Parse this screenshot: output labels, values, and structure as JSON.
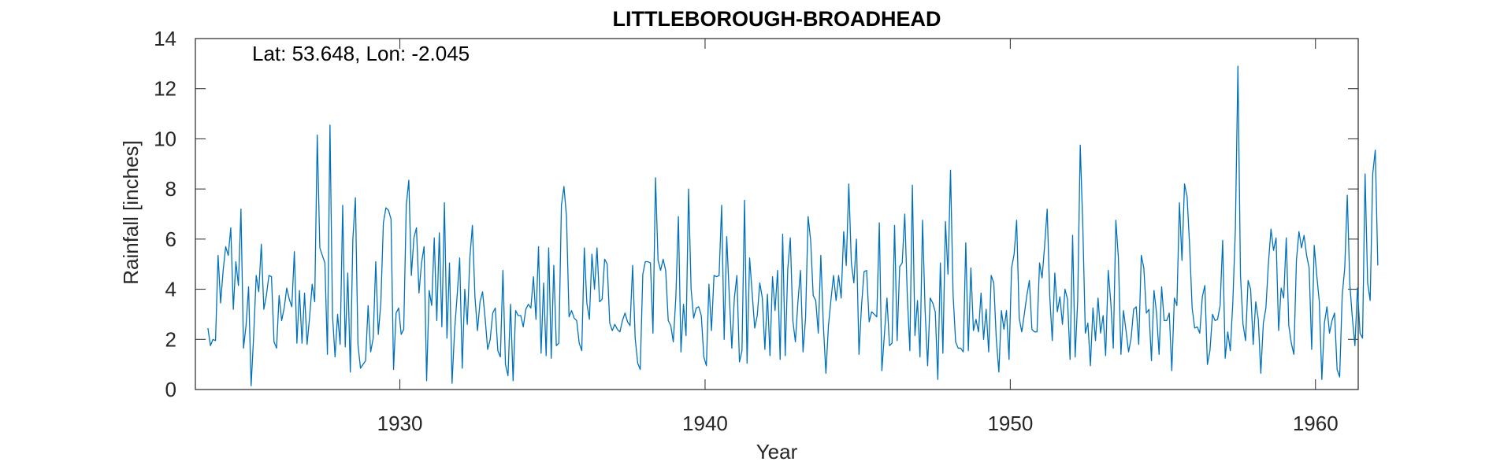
{
  "chart_data": {
    "type": "line",
    "title": "LITTLEBOROUGH-BROADHEAD",
    "annotation": "Lat: 53.648, Lon: -2.045",
    "xlabel": "Year",
    "ylabel": "Rainfall [inches]",
    "xlim": [
      1923.3,
      1961.4
    ],
    "ylim": [
      0,
      14
    ],
    "xticks": [
      1930,
      1940,
      1950,
      1960
    ],
    "yticks": [
      0,
      2,
      4,
      6,
      8,
      10,
      12,
      14
    ],
    "grid": false,
    "legend": "none",
    "line_color": "#0072BD",
    "series": [
      {
        "x_start": 1923.71,
        "x_step": 0.08333,
        "values": [
          2.45,
          1.75,
          2.0,
          1.95,
          5.35,
          3.45,
          4.75,
          5.7,
          5.35,
          6.45,
          3.2,
          5.1,
          4.15,
          7.2,
          1.65,
          2.55,
          4.1,
          0.15,
          2.15,
          4.55,
          3.9,
          5.8,
          3.2,
          3.75,
          4.55,
          4.5,
          1.9,
          1.65,
          3.75,
          2.75,
          3.25,
          4.05,
          3.6,
          3.3,
          5.5,
          1.85,
          3.95,
          1.85,
          3.85,
          1.8,
          2.9,
          4.2,
          3.5,
          10.15,
          5.65,
          5.35,
          5.05,
          1.4,
          10.55,
          2.95,
          1.3,
          3.0,
          1.8,
          7.35,
          1.7,
          4.65,
          0.7,
          6.0,
          7.65,
          1.8,
          0.85,
          1.0,
          1.15,
          3.35,
          1.5,
          2.05,
          5.1,
          2.2,
          3.45,
          6.65,
          7.25,
          7.15,
          6.8,
          0.8,
          3.05,
          3.25,
          2.2,
          2.4,
          7.35,
          8.35,
          4.55,
          6.05,
          6.45,
          3.85,
          5.05,
          5.7,
          0.35,
          3.95,
          3.35,
          6.05,
          2.75,
          6.25,
          2.5,
          7.45,
          2.05,
          5.05,
          0.25,
          2.35,
          3.75,
          5.25,
          0.85,
          4.0,
          2.6,
          5.25,
          6.55,
          3.7,
          2.35,
          3.5,
          3.9,
          2.85,
          1.6,
          2.0,
          3.05,
          3.25,
          1.55,
          1.3,
          4.75,
          1.0,
          0.55,
          3.4,
          0.35,
          3.15,
          2.95,
          2.95,
          2.5,
          3.2,
          3.4,
          3.25,
          4.5,
          2.8,
          5.7,
          1.45,
          4.25,
          1.35,
          5.65,
          1.25,
          4.95,
          1.75,
          1.85,
          7.35,
          8.1,
          6.9,
          2.9,
          3.15,
          2.85,
          2.75,
          1.85,
          1.55,
          5.65,
          3.45,
          2.8,
          5.4,
          4.0,
          5.65,
          3.5,
          3.6,
          5.2,
          5.0,
          2.65,
          2.35,
          2.6,
          2.4,
          2.3,
          2.75,
          3.05,
          2.7,
          2.55,
          4.95,
          2.05,
          1.05,
          0.8,
          4.6,
          5.1,
          5.1,
          5.05,
          2.25,
          8.45,
          5.15,
          4.75,
          5.2,
          4.75,
          2.75,
          2.55,
          1.9,
          3.7,
          6.9,
          1.5,
          3.4,
          2.15,
          8.0,
          4.0,
          2.85,
          3.25,
          3.3,
          2.95,
          1.3,
          0.95,
          4.2,
          2.35,
          4.55,
          4.5,
          4.55,
          7.35,
          2.0,
          6.1,
          3.75,
          1.65,
          3.65,
          4.55,
          1.1,
          1.55,
          7.55,
          1.05,
          5.25,
          3.85,
          2.45,
          2.95,
          4.25,
          3.65,
          1.6,
          3.8,
          1.35,
          4.5,
          3.15,
          4.75,
          1.2,
          6.2,
          1.35,
          4.8,
          6.05,
          2.75,
          1.9,
          3.5,
          4.75,
          1.5,
          2.85,
          6.9,
          5.95,
          3.75,
          3.55,
          2.25,
          5.35,
          2.55,
          0.65,
          2.55,
          3.6,
          4.55,
          3.55,
          4.55,
          3.65,
          6.3,
          4.95,
          8.2,
          5.05,
          4.25,
          6.0,
          1.4,
          3.35,
          4.7,
          4.75,
          2.7,
          3.1,
          3.0,
          2.9,
          6.65,
          0.75,
          2.2,
          3.65,
          1.75,
          1.85,
          6.55,
          1.95,
          4.9,
          5.05,
          7.0,
          3.75,
          1.55,
          8.15,
          2.15,
          3.55,
          1.3,
          6.75,
          3.15,
          0.95,
          3.65,
          3.45,
          3.1,
          0.4,
          5.05,
          1.45,
          6.7,
          4.6,
          8.75,
          3.8,
          1.9,
          1.65,
          1.65,
          1.5,
          5.85,
          1.55,
          4.85,
          2.35,
          2.8,
          2.3,
          3.85,
          2.0,
          3.2,
          1.5,
          4.55,
          4.25,
          2.0,
          0.7,
          3.15,
          2.4,
          3.15,
          1.2,
          4.85,
          5.4,
          6.75,
          2.85,
          2.3,
          3.0,
          3.75,
          4.35,
          2.4,
          2.3,
          2.3,
          5.05,
          4.45,
          5.75,
          7.2,
          3.75,
          1.95,
          4.65,
          3.1,
          3.7,
          2.6,
          4.0,
          3.6,
          1.2,
          6.15,
          1.3,
          3.55,
          9.75,
          6.55,
          2.25,
          2.65,
          0.95,
          3.25,
          1.95,
          3.65,
          2.25,
          2.95,
          1.35,
          4.75,
          3.5,
          1.65,
          6.75,
          5.25,
          1.4,
          3.15,
          2.35,
          1.5,
          2.05,
          3.2,
          3.3,
          1.8,
          5.35,
          4.85,
          3.05,
          3.2,
          1.15,
          3.95,
          3.05,
          1.4,
          4.1,
          2.75,
          2.75,
          3.05,
          0.75,
          3.65,
          3.35,
          7.45,
          5.15,
          8.2,
          7.7,
          5.75,
          3.25,
          2.45,
          2.5,
          2.25,
          3.7,
          4.15,
          1.0,
          1.55,
          3.0,
          2.75,
          2.8,
          3.35,
          5.95,
          1.25,
          2.3,
          1.55,
          3.5,
          6.4,
          12.9,
          4.55,
          2.6,
          1.95,
          4.35,
          4.0,
          1.8,
          3.5,
          2.8,
          0.65,
          2.65,
          3.25,
          5.05,
          6.4,
          5.55,
          6.05,
          2.35,
          4.05,
          3.65,
          6.05,
          2.55,
          1.85,
          1.4,
          5.15,
          6.3,
          5.65,
          6.15,
          5.35,
          4.85,
          1.6,
          5.75,
          4.55,
          3.5,
          0.4,
          2.65,
          3.3,
          2.25,
          2.75,
          3.05,
          0.8,
          0.5,
          3.75,
          4.85,
          7.75,
          4.2,
          2.85,
          1.75,
          4.05,
          2.25,
          2.05,
          8.6,
          4.25,
          3.55,
          8.6,
          9.55,
          4.95
        ]
      }
    ]
  }
}
